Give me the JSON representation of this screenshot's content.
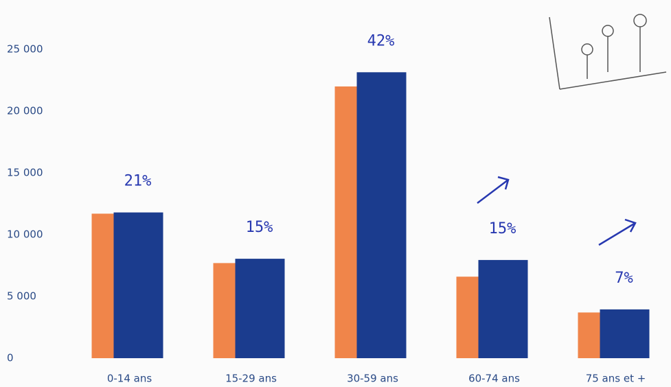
{
  "chart_data": {
    "type": "bar",
    "categories": [
      "0-14 ans",
      "15-29 ans",
      "30-59 ans",
      "60-74 ans",
      "75 ans et +"
    ],
    "series": [
      {
        "color": "#f0854a",
        "values": [
          11700,
          7700,
          22000,
          6600,
          3700
        ]
      },
      {
        "color": "#1b3c8e",
        "values": [
          11800,
          8050,
          23150,
          7950,
          3950
        ]
      }
    ],
    "ylim": [
      0,
      28000
    ],
    "yticks": [
      0,
      {
        "value": 5000,
        "label": "5 000"
      },
      {
        "value": 10000,
        "label": "10 000"
      },
      {
        "value": 15000,
        "label": "15 000"
      },
      {
        "value": 20000,
        "label": "20 000"
      },
      {
        "value": 25000,
        "label": "25 000"
      }
    ],
    "annotations": [
      "21%",
      "15%",
      "42%",
      "15%",
      "7%"
    ],
    "grid": false
  }
}
